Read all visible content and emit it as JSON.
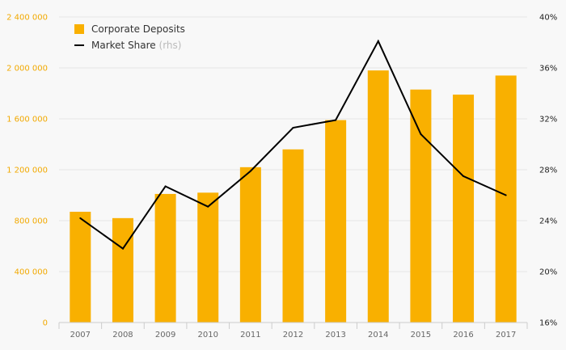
{
  "chart_data": {
    "type": "bar+line",
    "categories": [
      "2007",
      "2008",
      "2009",
      "2010",
      "2011",
      "2012",
      "2013",
      "2014",
      "2015",
      "2016",
      "2017"
    ],
    "series": [
      {
        "name": "Corporate Deposits",
        "type": "bar",
        "axis": "left",
        "color": "#f9b000",
        "values": [
          870000,
          820000,
          1010000,
          1020000,
          1220000,
          1360000,
          1590000,
          1980000,
          1830000,
          1790000,
          1940000
        ]
      },
      {
        "name": "Market Share",
        "name_suffix": "(rhs)",
        "type": "line",
        "axis": "right",
        "color": "#000000",
        "values": [
          24.2,
          21.8,
          26.7,
          25.1,
          27.9,
          31.3,
          31.9,
          38.1,
          30.8,
          27.5,
          26.0
        ]
      }
    ],
    "y_left": {
      "ylim": [
        0,
        2400000
      ],
      "ticks": [
        0,
        400000,
        800000,
        1200000,
        1600000,
        2000000,
        2400000
      ],
      "tick_labels": [
        "0",
        "400 000",
        "800 000",
        "1 200 000",
        "1 600 000",
        "2 000 000",
        "2 400 000"
      ],
      "color": "#f2a900"
    },
    "y_right": {
      "ylim": [
        16,
        40
      ],
      "ticks": [
        16,
        20,
        24,
        28,
        32,
        36,
        40
      ],
      "tick_labels": [
        "16%",
        "20%",
        "24%",
        "28%",
        "32%",
        "36%",
        "40%"
      ],
      "color": "#222222"
    },
    "grid": true,
    "legend": "top-left"
  }
}
